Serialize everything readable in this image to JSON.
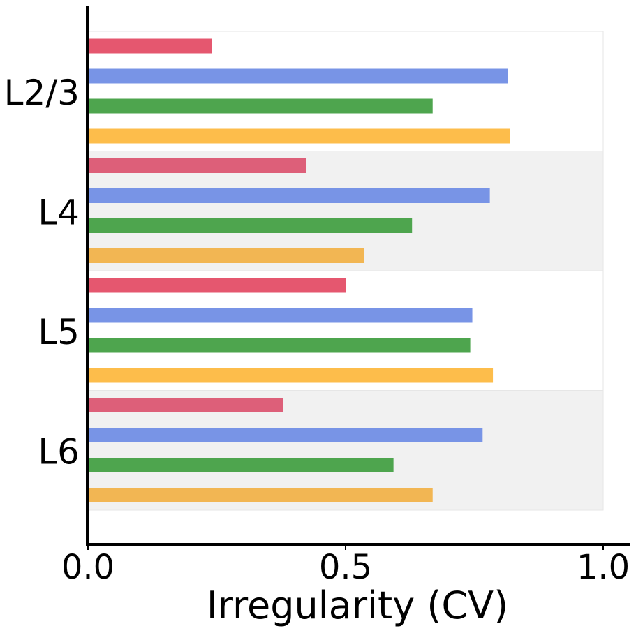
{
  "chart_data": {
    "type": "bar",
    "orientation": "horizontal",
    "title": "",
    "xlabel": "Irregularity (CV)",
    "ylabel": "",
    "xlim": [
      0,
      1.05
    ],
    "x_ticks": [
      "0.0",
      "0.5",
      "1.0"
    ],
    "x_tick_values": [
      0,
      0.5,
      1.0
    ],
    "categories": [
      "L2/3",
      "L4",
      "L5",
      "L6"
    ],
    "grid": false,
    "legend": "none",
    "band_colors": [
      "#ffffff",
      "#f1f1f1",
      "#ffffff",
      "#f1f1f1"
    ],
    "series": [
      {
        "color": "#e5576f",
        "values": [
          0.24,
          0.424,
          0.501,
          0.379
        ]
      },
      {
        "color": "#7894e6",
        "values": [
          0.815,
          0.78,
          0.746,
          0.766
        ]
      },
      {
        "color": "#4ea54e",
        "values": [
          0.669,
          0.629,
          0.742,
          0.593
        ]
      },
      {
        "color": "#fdbd4b",
        "values": [
          0.819,
          0.536,
          0.786,
          0.669
        ]
      }
    ],
    "category_series_colors": [
      [
        "#e5576f",
        "#7894e6",
        "#4ea54e",
        "#fdbd4b"
      ],
      [
        "#dd5f79",
        "#7894e6",
        "#4ea54e",
        "#f2b653"
      ],
      [
        "#e5576f",
        "#7894e6",
        "#4ea54e",
        "#fdbd4b"
      ],
      [
        "#dd5f79",
        "#7894e6",
        "#4ea54e",
        "#f2b653"
      ]
    ]
  }
}
